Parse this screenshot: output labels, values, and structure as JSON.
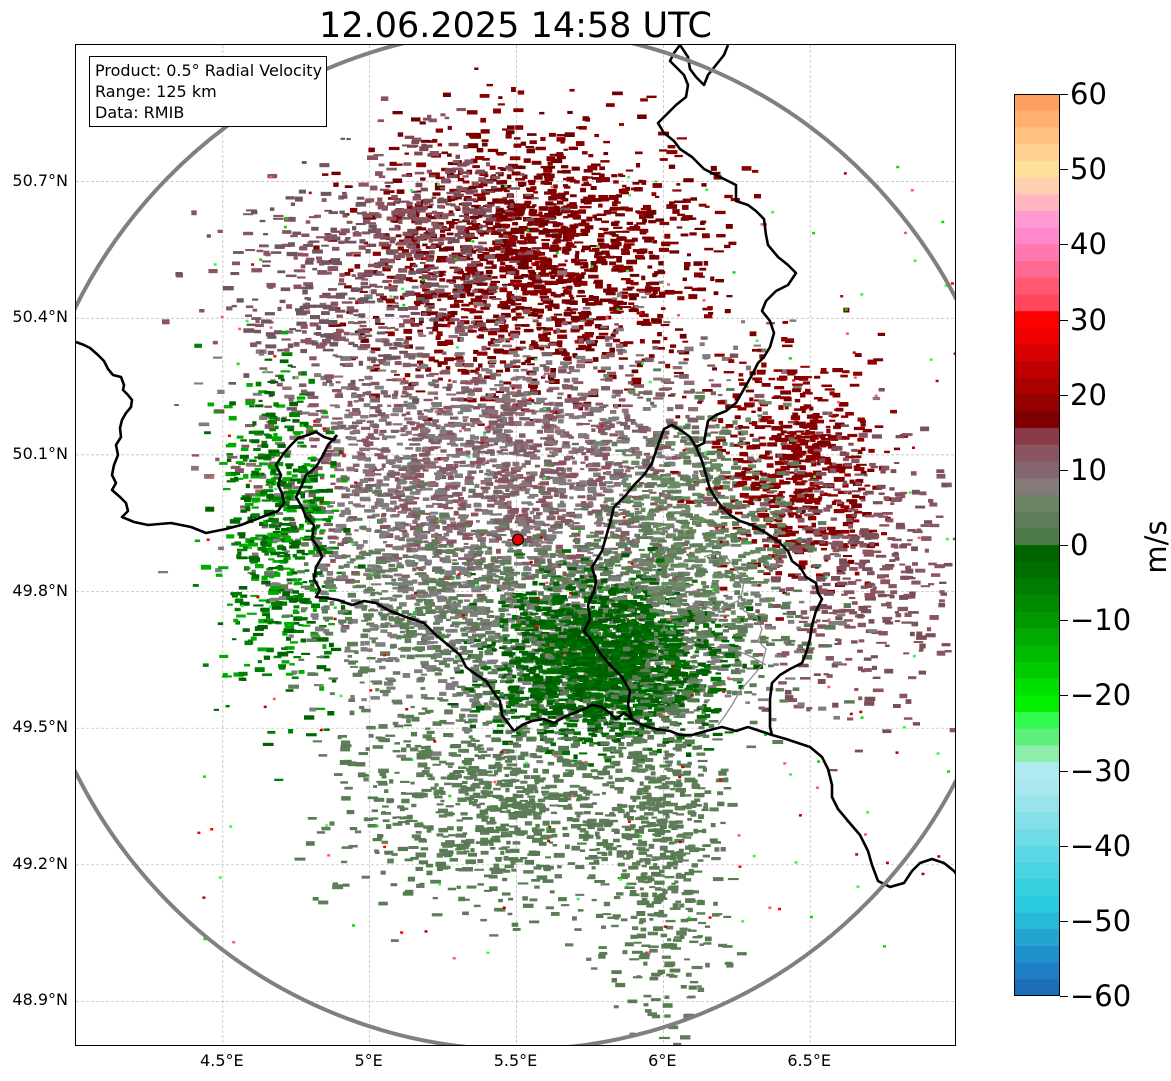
{
  "title": "12.06.2025 14:58 UTC",
  "info_box": {
    "product": "Product: 0.5° Radial Velocity",
    "range": "Range: 125 km",
    "data": "Data: RMIB"
  },
  "map": {
    "lon_range": [
      4.0,
      7.0
    ],
    "lat_range": [
      48.8,
      51.0
    ],
    "radar_site": {
      "lon": 5.505,
      "lat": 49.914
    },
    "x_ticks": [
      "4.5°E",
      "5°E",
      "5.5°E",
      "6°E",
      "6.5°E"
    ],
    "y_ticks": [
      "48.9°N",
      "49.2°N",
      "49.5°N",
      "49.8°N",
      "50.1°N",
      "50.4°N",
      "50.7°N"
    ],
    "icons": [
      "radar-site-marker"
    ]
  },
  "colorbar": {
    "label": "m/s",
    "ticks": [
      "60",
      "50",
      "40",
      "30",
      "20",
      "10",
      "0",
      "−10",
      "−20",
      "−30",
      "−40",
      "−50",
      "−60"
    ],
    "range": [
      -60,
      60
    ],
    "colors_top_to_bottom": [
      "#ff9f5f",
      "#ffb070",
      "#ffc080",
      "#ffd090",
      "#ffe098",
      "#ffd0b0",
      "#ffb6c0",
      "#ff9bd0",
      "#ff88cc",
      "#ff78b0",
      "#ff6890",
      "#ff5870",
      "#ff4860",
      "#ff0000",
      "#ee0000",
      "#d80000",
      "#c00000",
      "#aa0000",
      "#960000",
      "#7f0000",
      "#8b3a48",
      "#8a5560",
      "#856570",
      "#847a78",
      "#6c8466",
      "#5e7d58",
      "#4f7a4a",
      "#006400",
      "#006f00",
      "#007d00",
      "#008a00",
      "#009900",
      "#00aa00",
      "#00bb00",
      "#00cc00",
      "#00e000",
      "#00f000",
      "#32fb50",
      "#5cf07a",
      "#8ceeaa",
      "#b0eaf0",
      "#a8e8ee",
      "#98e4ec",
      "#84e0e8",
      "#70dce6",
      "#5cd8e4",
      "#48d4e2",
      "#36d0e0",
      "#2ccce0",
      "#28b8d8",
      "#24a4d0",
      "#2090cc",
      "#1e7ec6",
      "#1e6eb6"
    ]
  },
  "colors": {
    "inbound_strong": "#7f0000",
    "inbound_weak": "#8a5560",
    "near_zero": "#7e7e7e",
    "outbound_weak": "#5e7d58",
    "outbound_strong": "#006400",
    "range_ring": "#808080",
    "border": "#000000"
  }
}
